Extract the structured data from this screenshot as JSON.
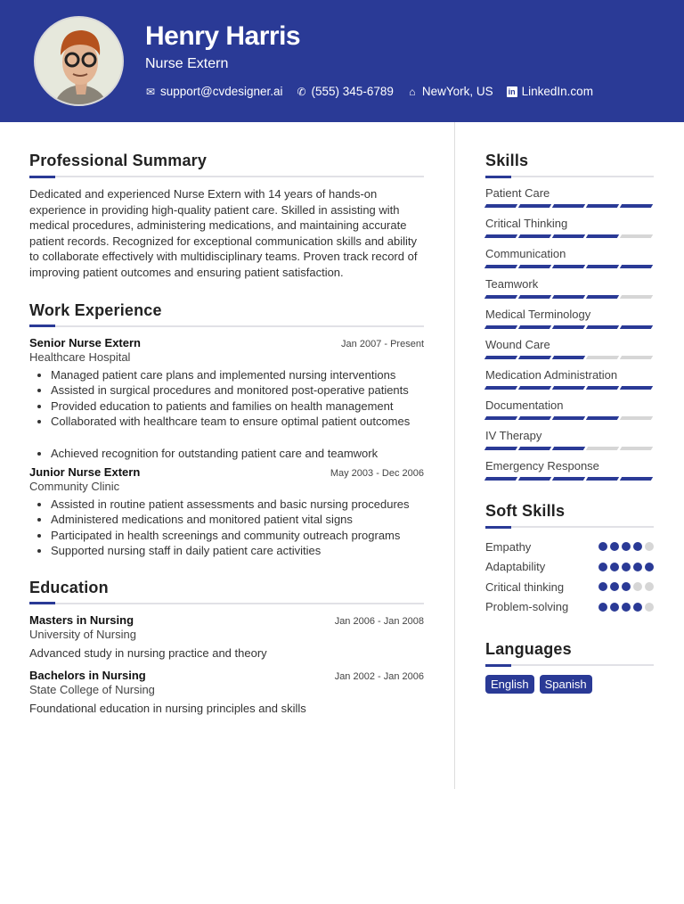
{
  "header": {
    "name": "Henry Harris",
    "title": "Nurse Extern",
    "contacts": [
      {
        "icon": "envelope-icon",
        "text": "support@cvdesigner.ai"
      },
      {
        "icon": "phone-icon",
        "text": "(555) 345-6789"
      },
      {
        "icon": "home-icon",
        "text": "NewYork, US"
      },
      {
        "icon": "linkedin-icon",
        "text": "LinkedIn.com"
      }
    ]
  },
  "accent": "#2a3a96",
  "summary": {
    "heading": "Professional Summary",
    "text": "Dedicated and experienced Nurse Extern with 14 years of hands-on experience in providing high-quality patient care. Skilled in assisting with medical procedures, administering medications, and maintaining accurate patient records. Recognized for exceptional communication skills and ability to collaborate effectively with multidisciplinary teams. Proven track record of improving patient outcomes and ensuring patient satisfaction."
  },
  "experience": {
    "heading": "Work Experience",
    "jobs": [
      {
        "title": "Senior Nurse Extern",
        "dates": "Jan 2007 - Present",
        "org": "Healthcare Hospital",
        "bullets": [
          "Managed patient care plans and implemented nursing interventions",
          "Assisted in surgical procedures and monitored post-operative patients",
          "Provided education to patients and families on health management",
          "Collaborated with healthcare team to ensure optimal patient outcomes",
          "Achieved recognition for outstanding patient care and teamwork"
        ]
      },
      {
        "title": "Junior Nurse Extern",
        "dates": "May 2003 - Dec 2006",
        "org": "Community Clinic",
        "bullets": [
          "Assisted in routine patient assessments and basic nursing procedures",
          "Administered medications and monitored patient vital signs",
          "Participated in health screenings and community outreach programs",
          "Supported nursing staff in daily patient care activities"
        ]
      }
    ]
  },
  "education": {
    "heading": "Education",
    "items": [
      {
        "degree": "Masters in Nursing",
        "dates": "Jan 2006 - Jan 2008",
        "school": "University of Nursing",
        "desc": "Advanced study in nursing practice and theory"
      },
      {
        "degree": "Bachelors in Nursing",
        "dates": "Jan 2002 - Jan 2006",
        "school": "State College of Nursing",
        "desc": "Foundational education in nursing principles and skills"
      }
    ]
  },
  "skills": {
    "heading": "Skills",
    "max": 5,
    "items": [
      {
        "name": "Patient Care",
        "level": 5
      },
      {
        "name": "Critical Thinking",
        "level": 4
      },
      {
        "name": "Communication",
        "level": 5
      },
      {
        "name": "Teamwork",
        "level": 4
      },
      {
        "name": "Medical Terminology",
        "level": 5
      },
      {
        "name": "Wound Care",
        "level": 3
      },
      {
        "name": "Medication Administration",
        "level": 5
      },
      {
        "name": "Documentation",
        "level": 4
      },
      {
        "name": "IV Therapy",
        "level": 3
      },
      {
        "name": "Emergency Response",
        "level": 5
      }
    ]
  },
  "soft_skills": {
    "heading": "Soft Skills",
    "max": 5,
    "items": [
      {
        "name": "Empathy",
        "level": 4
      },
      {
        "name": "Adaptability",
        "level": 5
      },
      {
        "name": "Critical thinking",
        "level": 3
      },
      {
        "name": "Problem-solving",
        "level": 4
      }
    ]
  },
  "languages": {
    "heading": "Languages",
    "items": [
      "English",
      "Spanish"
    ]
  }
}
